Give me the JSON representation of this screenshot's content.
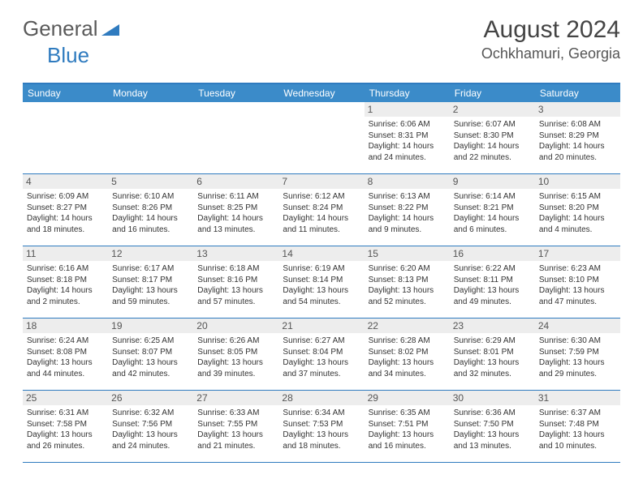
{
  "logo": {
    "general": "General",
    "blue": "Blue"
  },
  "title": "August 2024",
  "location": "Ochkhamuri, Georgia",
  "colors": {
    "header_bg": "#3b8bc9",
    "header_text": "#ffffff",
    "border": "#2f7bbf",
    "daynum_bg": "#ededed",
    "text": "#333333"
  },
  "dow": [
    "Sunday",
    "Monday",
    "Tuesday",
    "Wednesday",
    "Thursday",
    "Friday",
    "Saturday"
  ],
  "weeks": [
    [
      null,
      null,
      null,
      null,
      {
        "n": "1",
        "sr": "6:06 AM",
        "ss": "8:31 PM",
        "dl": "14 hours and 24 minutes."
      },
      {
        "n": "2",
        "sr": "6:07 AM",
        "ss": "8:30 PM",
        "dl": "14 hours and 22 minutes."
      },
      {
        "n": "3",
        "sr": "6:08 AM",
        "ss": "8:29 PM",
        "dl": "14 hours and 20 minutes."
      }
    ],
    [
      {
        "n": "4",
        "sr": "6:09 AM",
        "ss": "8:27 PM",
        "dl": "14 hours and 18 minutes."
      },
      {
        "n": "5",
        "sr": "6:10 AM",
        "ss": "8:26 PM",
        "dl": "14 hours and 16 minutes."
      },
      {
        "n": "6",
        "sr": "6:11 AM",
        "ss": "8:25 PM",
        "dl": "14 hours and 13 minutes."
      },
      {
        "n": "7",
        "sr": "6:12 AM",
        "ss": "8:24 PM",
        "dl": "14 hours and 11 minutes."
      },
      {
        "n": "8",
        "sr": "6:13 AM",
        "ss": "8:22 PM",
        "dl": "14 hours and 9 minutes."
      },
      {
        "n": "9",
        "sr": "6:14 AM",
        "ss": "8:21 PM",
        "dl": "14 hours and 6 minutes."
      },
      {
        "n": "10",
        "sr": "6:15 AM",
        "ss": "8:20 PM",
        "dl": "14 hours and 4 minutes."
      }
    ],
    [
      {
        "n": "11",
        "sr": "6:16 AM",
        "ss": "8:18 PM",
        "dl": "14 hours and 2 minutes."
      },
      {
        "n": "12",
        "sr": "6:17 AM",
        "ss": "8:17 PM",
        "dl": "13 hours and 59 minutes."
      },
      {
        "n": "13",
        "sr": "6:18 AM",
        "ss": "8:16 PM",
        "dl": "13 hours and 57 minutes."
      },
      {
        "n": "14",
        "sr": "6:19 AM",
        "ss": "8:14 PM",
        "dl": "13 hours and 54 minutes."
      },
      {
        "n": "15",
        "sr": "6:20 AM",
        "ss": "8:13 PM",
        "dl": "13 hours and 52 minutes."
      },
      {
        "n": "16",
        "sr": "6:22 AM",
        "ss": "8:11 PM",
        "dl": "13 hours and 49 minutes."
      },
      {
        "n": "17",
        "sr": "6:23 AM",
        "ss": "8:10 PM",
        "dl": "13 hours and 47 minutes."
      }
    ],
    [
      {
        "n": "18",
        "sr": "6:24 AM",
        "ss": "8:08 PM",
        "dl": "13 hours and 44 minutes."
      },
      {
        "n": "19",
        "sr": "6:25 AM",
        "ss": "8:07 PM",
        "dl": "13 hours and 42 minutes."
      },
      {
        "n": "20",
        "sr": "6:26 AM",
        "ss": "8:05 PM",
        "dl": "13 hours and 39 minutes."
      },
      {
        "n": "21",
        "sr": "6:27 AM",
        "ss": "8:04 PM",
        "dl": "13 hours and 37 minutes."
      },
      {
        "n": "22",
        "sr": "6:28 AM",
        "ss": "8:02 PM",
        "dl": "13 hours and 34 minutes."
      },
      {
        "n": "23",
        "sr": "6:29 AM",
        "ss": "8:01 PM",
        "dl": "13 hours and 32 minutes."
      },
      {
        "n": "24",
        "sr": "6:30 AM",
        "ss": "7:59 PM",
        "dl": "13 hours and 29 minutes."
      }
    ],
    [
      {
        "n": "25",
        "sr": "6:31 AM",
        "ss": "7:58 PM",
        "dl": "13 hours and 26 minutes."
      },
      {
        "n": "26",
        "sr": "6:32 AM",
        "ss": "7:56 PM",
        "dl": "13 hours and 24 minutes."
      },
      {
        "n": "27",
        "sr": "6:33 AM",
        "ss": "7:55 PM",
        "dl": "13 hours and 21 minutes."
      },
      {
        "n": "28",
        "sr": "6:34 AM",
        "ss": "7:53 PM",
        "dl": "13 hours and 18 minutes."
      },
      {
        "n": "29",
        "sr": "6:35 AM",
        "ss": "7:51 PM",
        "dl": "13 hours and 16 minutes."
      },
      {
        "n": "30",
        "sr": "6:36 AM",
        "ss": "7:50 PM",
        "dl": "13 hours and 13 minutes."
      },
      {
        "n": "31",
        "sr": "6:37 AM",
        "ss": "7:48 PM",
        "dl": "13 hours and 10 minutes."
      }
    ]
  ],
  "labels": {
    "sunrise": "Sunrise: ",
    "sunset": "Sunset: ",
    "daylight": "Daylight: "
  }
}
